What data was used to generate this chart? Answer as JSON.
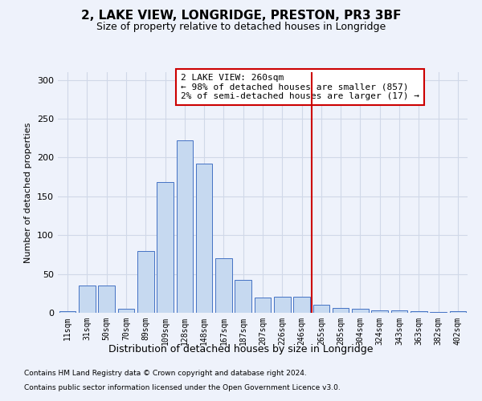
{
  "title": "2, LAKE VIEW, LONGRIDGE, PRESTON, PR3 3BF",
  "subtitle": "Size of property relative to detached houses in Longridge",
  "xlabel": "Distribution of detached houses by size in Longridge",
  "ylabel": "Number of detached properties",
  "categories": [
    "11sqm",
    "31sqm",
    "50sqm",
    "70sqm",
    "89sqm",
    "109sqm",
    "128sqm",
    "148sqm",
    "167sqm",
    "187sqm",
    "207sqm",
    "226sqm",
    "246sqm",
    "265sqm",
    "285sqm",
    "304sqm",
    "324sqm",
    "343sqm",
    "363sqm",
    "382sqm",
    "402sqm"
  ],
  "values": [
    2,
    35,
    35,
    5,
    80,
    168,
    222,
    192,
    70,
    42,
    20,
    21,
    21,
    10,
    6,
    5,
    3,
    3,
    2,
    1,
    2
  ],
  "bar_color": "#c6d9f0",
  "bar_edge_color": "#4472c4",
  "vline_color": "#cc0000",
  "annotation_text": "2 LAKE VIEW: 260sqm\n← 98% of detached houses are smaller (857)\n2% of semi-detached houses are larger (17) →",
  "annotation_box_color": "#cc0000",
  "ylim": [
    0,
    310
  ],
  "yticks": [
    0,
    50,
    100,
    150,
    200,
    250,
    300
  ],
  "grid_color": "#d0d8e8",
  "background_color": "#eef2fb",
  "footer_line1": "Contains HM Land Registry data © Crown copyright and database right 2024.",
  "footer_line2": "Contains public sector information licensed under the Open Government Licence v3.0."
}
